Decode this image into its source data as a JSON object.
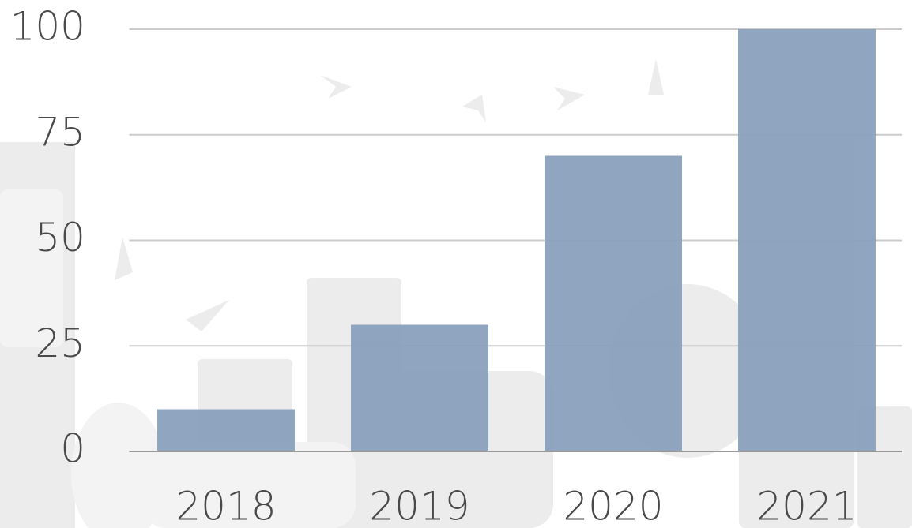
{
  "chart_data": {
    "type": "bar",
    "categories": [
      "2018",
      "2019",
      "2020",
      "2021"
    ],
    "values": [
      10,
      30,
      70,
      100
    ],
    "color": "#8aa1bd",
    "ylim": [
      0,
      100
    ],
    "yticks": [
      0,
      25,
      50,
      75,
      100
    ],
    "grid": true
  }
}
